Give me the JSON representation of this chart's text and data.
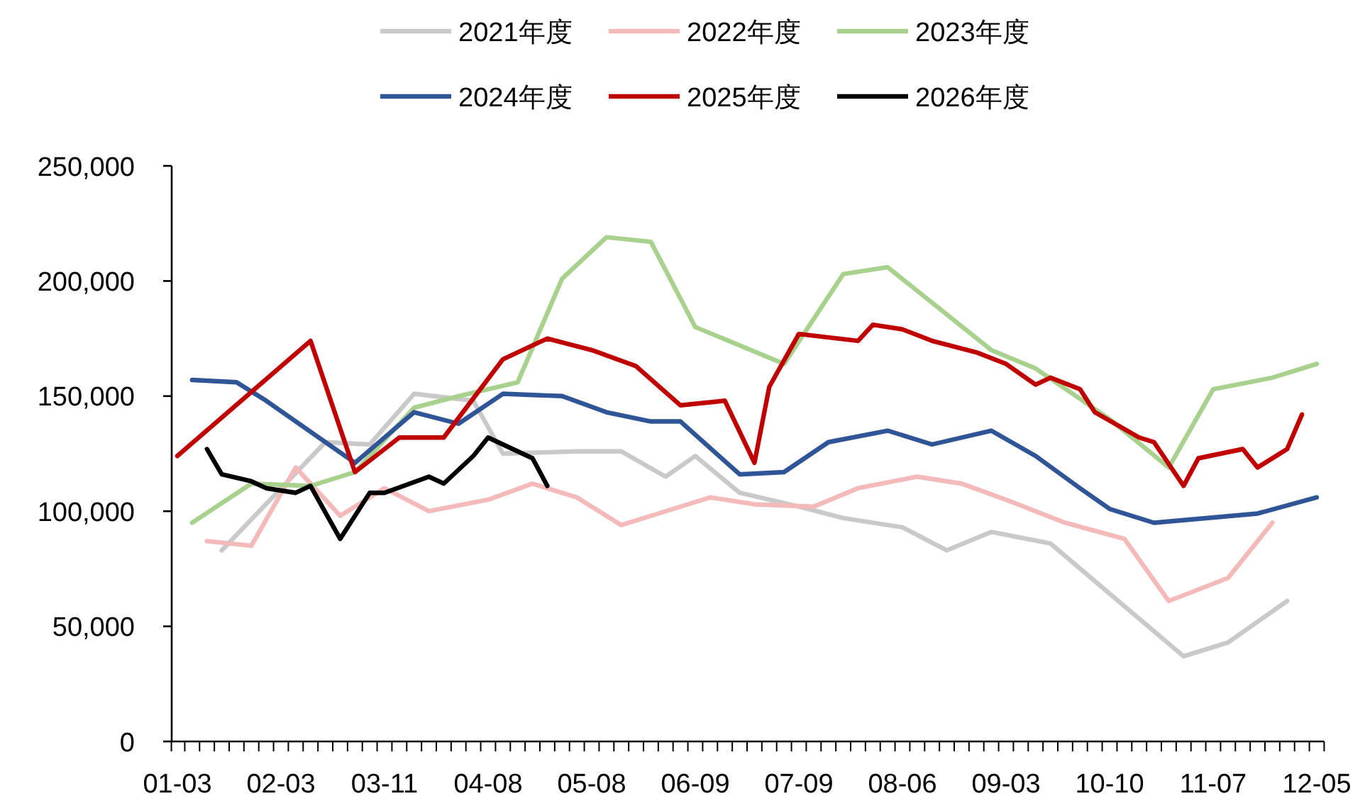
{
  "chart_data": {
    "type": "line",
    "legend": "top",
    "categories": [
      "01-03",
      null,
      null,
      null,
      null,
      null,
      null,
      "02-03",
      null,
      null,
      null,
      null,
      null,
      null,
      "03-11",
      null,
      null,
      null,
      null,
      null,
      null,
      "04-08",
      null,
      null,
      null,
      null,
      null,
      null,
      "05-08",
      null,
      null,
      null,
      null,
      null,
      null,
      "06-09",
      null,
      null,
      null,
      null,
      null,
      null,
      "07-09",
      null,
      null,
      null,
      null,
      null,
      null,
      "08-06",
      null,
      null,
      null,
      null,
      null,
      null,
      "09-03",
      null,
      null,
      null,
      null,
      null,
      null,
      "10-10",
      null,
      null,
      null,
      null,
      null,
      null,
      "11-07",
      null,
      null,
      null,
      null,
      null,
      null,
      "12-05"
    ],
    "ylim": [
      0,
      250000
    ],
    "yticks": [
      0,
      {
        "value": 50000,
        "label": "50,000"
      },
      {
        "value": 100000,
        "label": "100,000"
      },
      {
        "value": 150000,
        "label": "150,000"
      },
      {
        "value": 200000,
        "label": "200,000"
      },
      {
        "value": 250000,
        "label": "250,000"
      }
    ],
    "series": [
      {
        "name": "2021年度",
        "color": "#c9c9c9",
        "values": [
          null,
          null,
          null,
          83000,
          null,
          null,
          null,
          null,
          null,
          null,
          130000,
          null,
          null,
          129000,
          null,
          null,
          151000,
          null,
          null,
          null,
          148000,
          null,
          125000,
          null,
          null,
          null,
          null,
          126000,
          null,
          null,
          126000,
          null,
          null,
          115000,
          null,
          124000,
          null,
          null,
          108000,
          null,
          null,
          null,
          102000,
          null,
          null,
          97000,
          null,
          null,
          null,
          93000,
          null,
          null,
          83000,
          null,
          null,
          91000,
          null,
          null,
          null,
          86000,
          null,
          null,
          null,
          null,
          null,
          null,
          null,
          null,
          37000,
          null,
          null,
          43000,
          null,
          null,
          null,
          61000,
          null,
          null
        ]
      },
      {
        "name": "2022年度",
        "color": "#f4b9b9",
        "values": [
          null,
          null,
          87000,
          null,
          null,
          85000,
          null,
          null,
          119000,
          null,
          null,
          98000,
          null,
          null,
          110000,
          null,
          null,
          100000,
          null,
          null,
          null,
          105000,
          null,
          null,
          112000,
          null,
          null,
          106000,
          null,
          null,
          94000,
          null,
          null,
          null,
          null,
          null,
          106000,
          null,
          null,
          103000,
          null,
          null,
          null,
          102000,
          null,
          null,
          110000,
          null,
          null,
          null,
          115000,
          null,
          null,
          112000,
          null,
          null,
          105000,
          null,
          null,
          null,
          95000,
          null,
          null,
          null,
          88000,
          null,
          null,
          61000,
          null,
          null,
          null,
          71000,
          null,
          null,
          95000,
          null,
          null,
          null
        ]
      },
      {
        "name": "2023年度",
        "color": "#a9d18e",
        "values": [
          null,
          95000,
          null,
          null,
          null,
          112000,
          null,
          null,
          null,
          111000,
          null,
          null,
          117000,
          null,
          null,
          null,
          145000,
          null,
          null,
          150000,
          null,
          null,
          null,
          156000,
          null,
          null,
          201000,
          null,
          null,
          219000,
          null,
          null,
          217000,
          null,
          null,
          180000,
          null,
          null,
          null,
          null,
          null,
          164000,
          null,
          null,
          null,
          203000,
          null,
          null,
          206000,
          null,
          null,
          null,
          null,
          null,
          null,
          170000,
          null,
          null,
          162000,
          null,
          null,
          null,
          null,
          140000,
          null,
          null,
          null,
          119000,
          null,
          null,
          153000,
          null,
          null,
          null,
          158000,
          null,
          null,
          164000
        ]
      },
      {
        "name": "2024年度",
        "color": "#2f5597",
        "values": [
          null,
          157000,
          null,
          null,
          156000,
          null,
          148000,
          null,
          null,
          null,
          null,
          null,
          121000,
          null,
          null,
          null,
          143000,
          null,
          null,
          138000,
          null,
          null,
          151000,
          null,
          null,
          null,
          150000,
          null,
          null,
          143000,
          null,
          null,
          139000,
          null,
          139000,
          null,
          null,
          null,
          116000,
          null,
          null,
          117000,
          null,
          null,
          130000,
          null,
          null,
          null,
          135000,
          null,
          null,
          129000,
          null,
          null,
          null,
          135000,
          null,
          null,
          124000,
          null,
          null,
          110000,
          null,
          101000,
          null,
          null,
          95000,
          null,
          null,
          null,
          null,
          null,
          null,
          99000,
          null,
          null,
          null,
          106000
        ]
      },
      {
        "name": "2025年度",
        "color": "#c00000",
        "values": [
          124000,
          null,
          null,
          null,
          null,
          null,
          null,
          null,
          null,
          174000,
          null,
          null,
          117000,
          null,
          null,
          132000,
          null,
          null,
          132000,
          null,
          null,
          null,
          166000,
          null,
          null,
          175000,
          null,
          null,
          170000,
          null,
          null,
          163000,
          null,
          null,
          146000,
          null,
          null,
          148000,
          null,
          121000,
          154000,
          null,
          177000,
          null,
          null,
          null,
          174000,
          181000,
          null,
          179000,
          null,
          174000,
          null,
          null,
          169000,
          null,
          164000,
          null,
          155000,
          158000,
          null,
          153000,
          143000,
          null,
          null,
          132000,
          130000,
          null,
          111000,
          123000,
          null,
          null,
          127000,
          119000,
          null,
          127000,
          142000,
          null
        ]
      },
      {
        "name": "2026年度",
        "color": "#000000",
        "values": [
          null,
          null,
          127000,
          116000,
          null,
          113000,
          110000,
          null,
          108000,
          111000,
          null,
          88000,
          null,
          108000,
          108000,
          null,
          null,
          115000,
          112000,
          null,
          124000,
          132000,
          null,
          null,
          123000,
          111000,
          null,
          null,
          null,
          null,
          null,
          null,
          null,
          null,
          null,
          null,
          null,
          null,
          null,
          null,
          null,
          null,
          null,
          null,
          null,
          null,
          null,
          null,
          null,
          null,
          null,
          null,
          null,
          null,
          null,
          null,
          null,
          null,
          null,
          null,
          null,
          null,
          null,
          null,
          null,
          null,
          null,
          null,
          null,
          null,
          null,
          null,
          null,
          null,
          null,
          null,
          null,
          null
        ]
      }
    ]
  }
}
